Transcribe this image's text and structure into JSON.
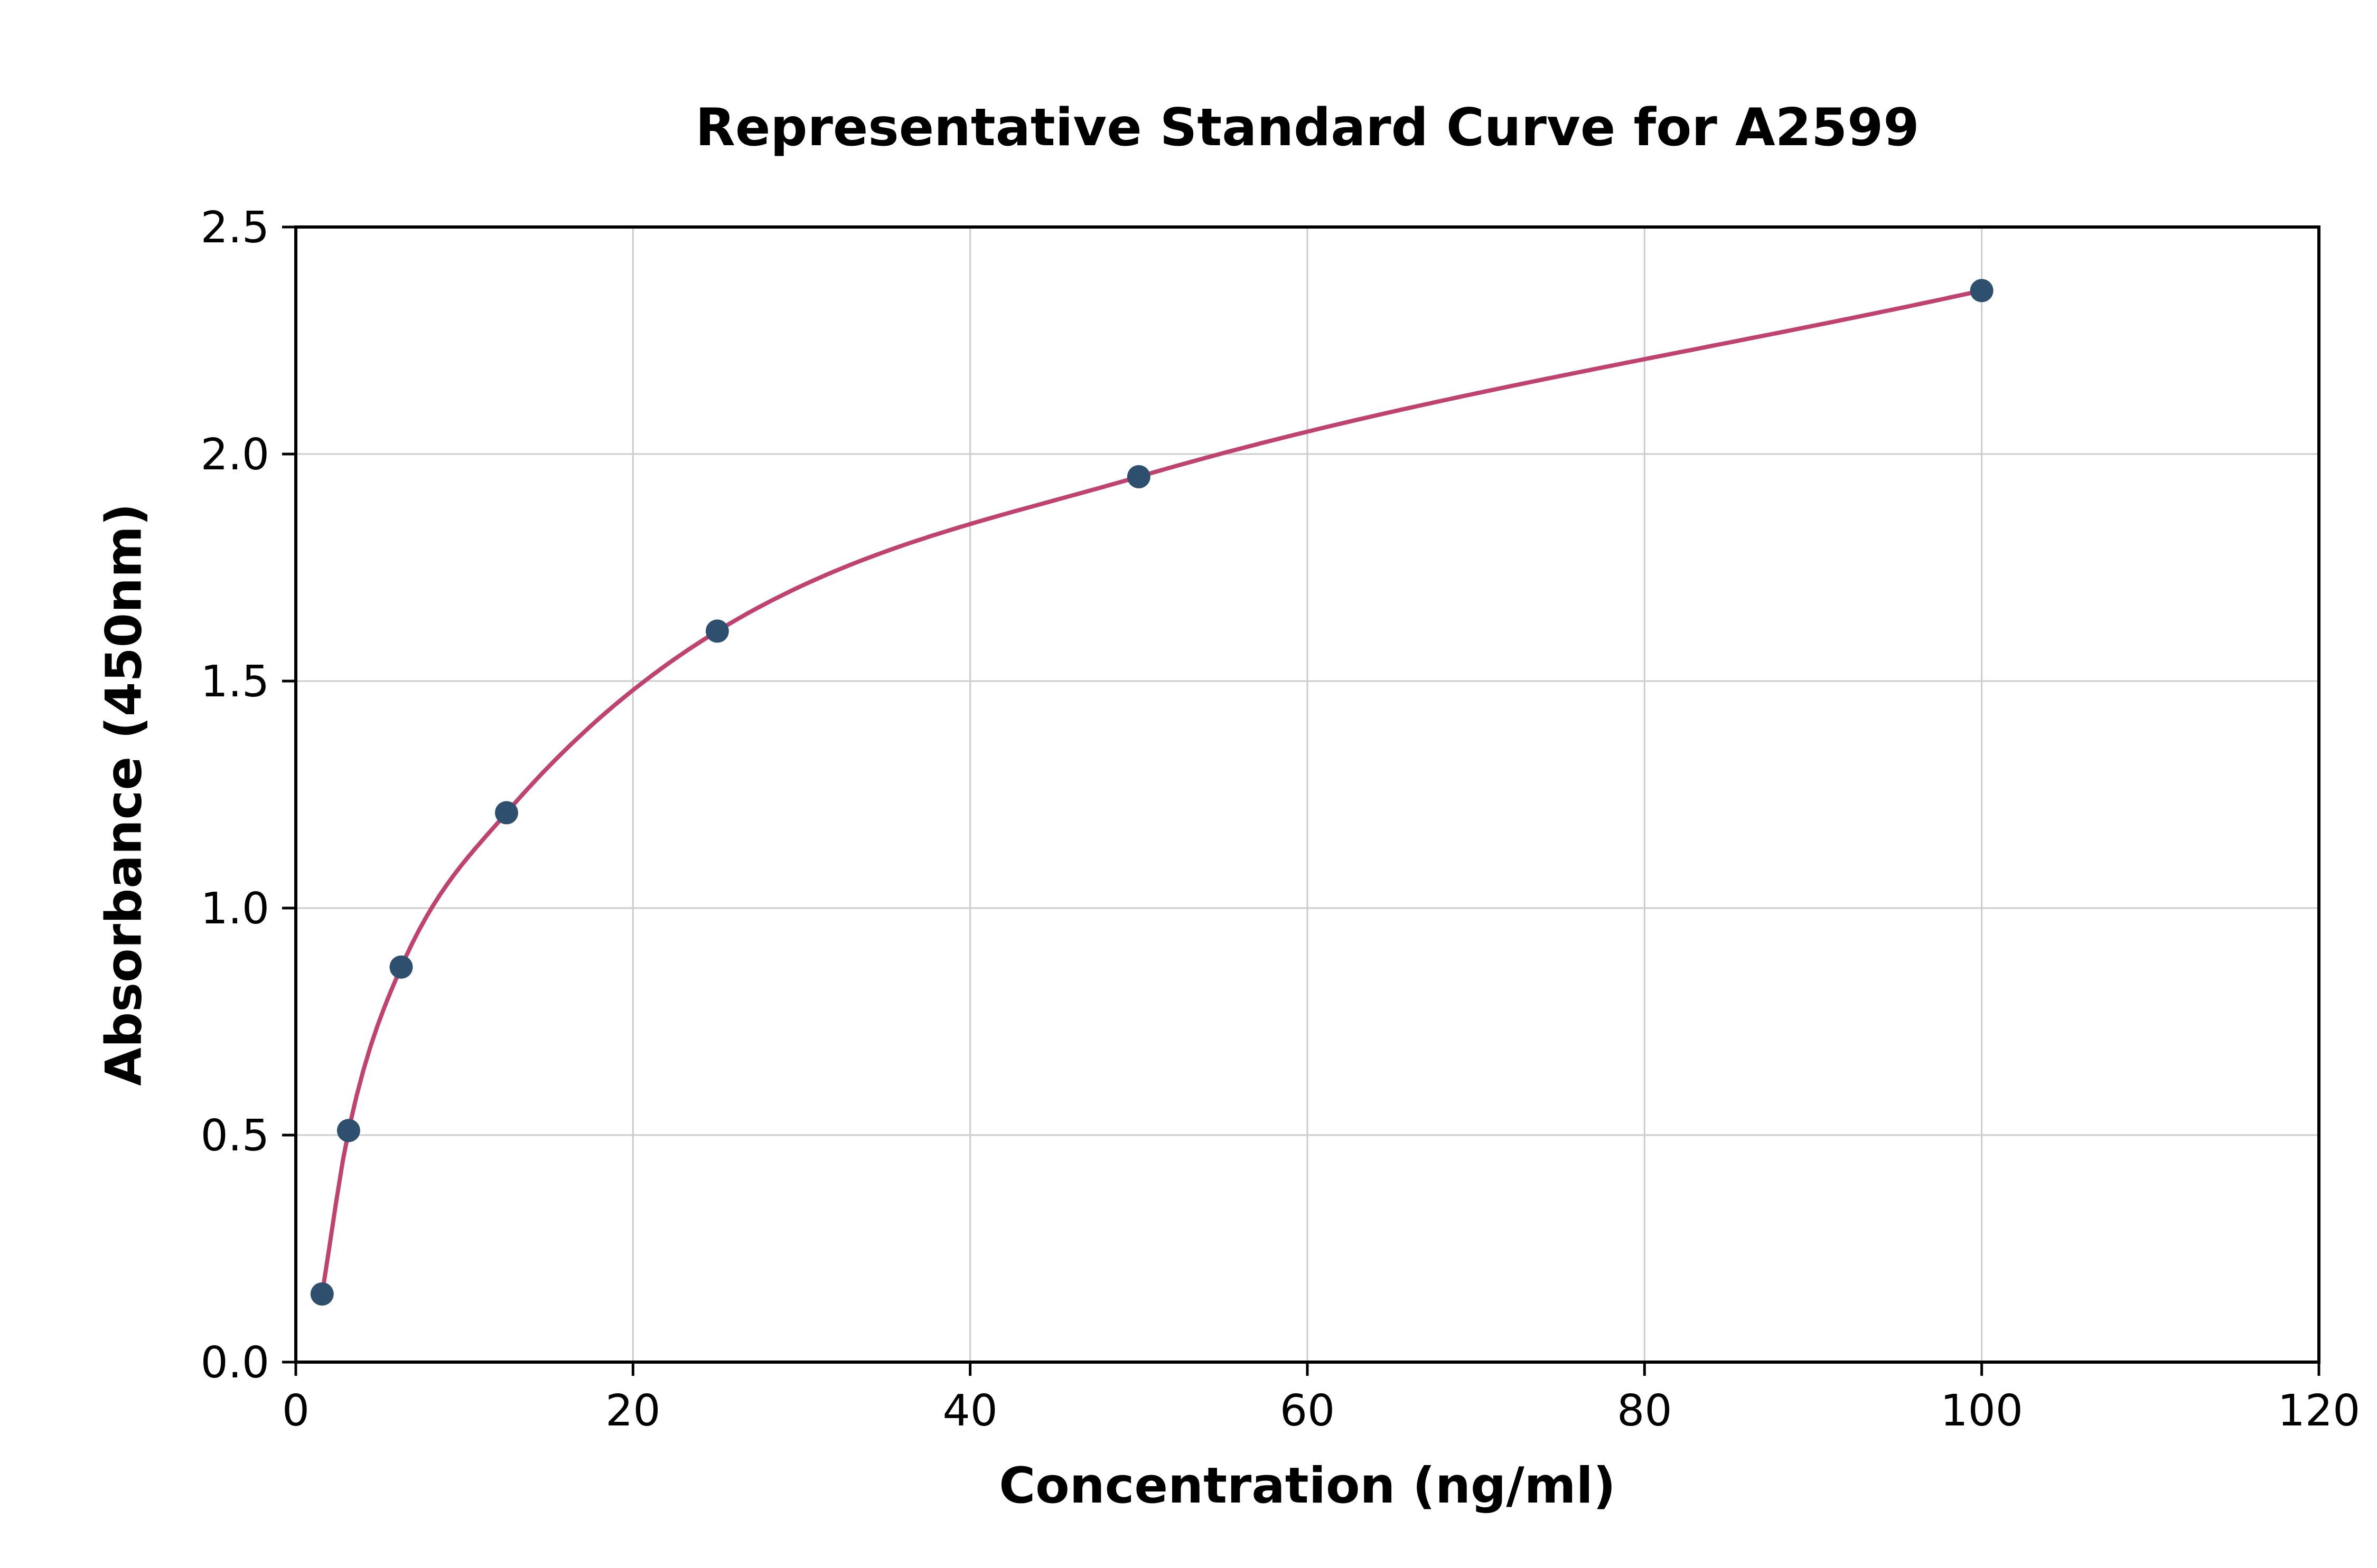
{
  "chart_data": {
    "type": "scatter",
    "title": "Representative Standard Curve for A2599",
    "xlabel": "Concentration (ng/ml)",
    "ylabel": "Absorbance (450nm)",
    "x": [
      1.56,
      3.13,
      6.25,
      12.5,
      25,
      50,
      100
    ],
    "y": [
      0.15,
      0.51,
      0.87,
      1.21,
      1.61,
      1.95,
      2.36
    ],
    "xlim": [
      0,
      120
    ],
    "ylim": [
      0,
      2.5
    ],
    "xticks": [
      0,
      20,
      40,
      60,
      80,
      100,
      120
    ],
    "yticks": [
      0.0,
      0.5,
      1.0,
      1.5,
      2.0,
      2.5
    ],
    "grid": true,
    "legend_position": "none",
    "curve_color": "#c0436f",
    "point_color": "#2e4f6e",
    "grid_color": "#cccccc",
    "axis_color": "#000000",
    "background_color": "#ffffff"
  }
}
